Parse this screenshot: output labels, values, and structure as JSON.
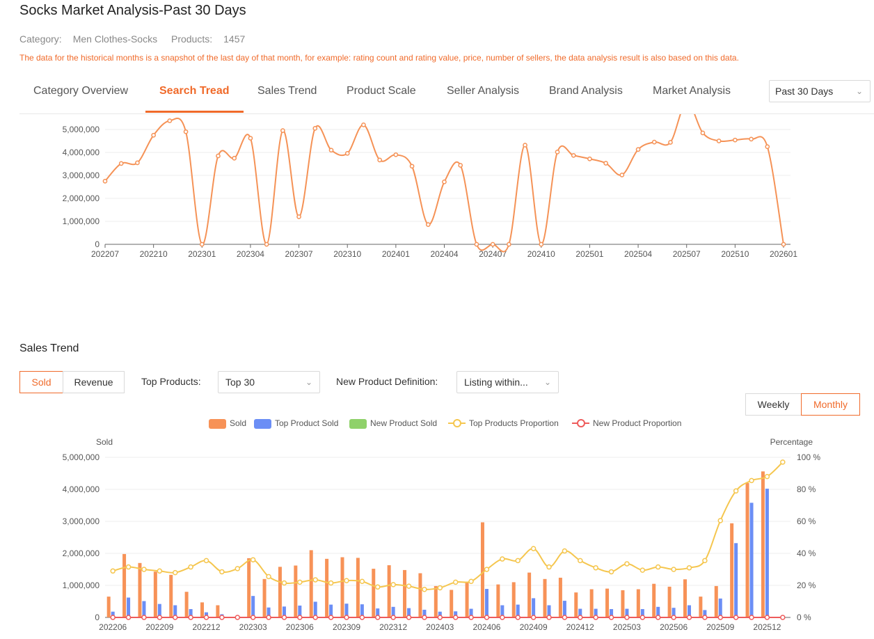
{
  "page": {
    "title": "Socks Market Analysis-Past 30 Days",
    "category_label": "Category:",
    "category_value": "Men Clothes-Socks",
    "products_label": "Products:",
    "products_value": "1457",
    "notice": "The data for the historical months is a snapshot of the last day of that month, for example: rating count and rating value, price, number of sellers, the data analysis result is also based on this data."
  },
  "tabs": [
    {
      "label": "Category Overview",
      "active": false
    },
    {
      "label": "Search Tread",
      "active": true
    },
    {
      "label": "Sales Trend",
      "active": false
    },
    {
      "label": "Product Scale",
      "active": false
    },
    {
      "label": "Seller Analysis",
      "active": false
    },
    {
      "label": "Brand Analysis",
      "active": false
    },
    {
      "label": "Market Analysis",
      "active": false
    }
  ],
  "period_select": {
    "value": "Past 30 Days"
  },
  "sales_section": {
    "title": "Sales Trend",
    "metric_toggle": [
      {
        "label": "Sold",
        "active": true
      },
      {
        "label": "Revenue",
        "active": false
      }
    ],
    "top_products_label": "Top Products:",
    "top_products_value": "Top 30",
    "new_def_label": "New Product Definition:",
    "new_def_value": "Listing within...",
    "granularity_toggle": [
      {
        "label": "Weekly",
        "active": false
      },
      {
        "label": "Monthly",
        "active": true
      }
    ]
  },
  "colors": {
    "accent": "#f06a2a",
    "search_line": "#f59256",
    "sold": "#f79257",
    "top_sold": "#6b8ef5",
    "new_sold": "#8fd16a",
    "top_prop": "#f5c64e",
    "new_prop": "#ee5b5b"
  },
  "chart_data": [
    {
      "type": "line",
      "title": "",
      "x": [
        "202207",
        "202208",
        "202209",
        "202210",
        "202211",
        "202212",
        "202301",
        "202302",
        "202303",
        "202304",
        "202305",
        "202306",
        "202307",
        "202308",
        "202309",
        "202310",
        "202311",
        "202312",
        "202401",
        "202402",
        "202403",
        "202404",
        "202405",
        "202406",
        "202407",
        "202408",
        "202409",
        "202410",
        "202411",
        "202412",
        "202501",
        "202502",
        "202503",
        "202504",
        "202505",
        "202506",
        "202507",
        "202508",
        "202509",
        "202510",
        "202511",
        "202512",
        "202601"
      ],
      "x_ticks": [
        "202207",
        "202210",
        "202301",
        "202304",
        "202307",
        "202310",
        "202401",
        "202404",
        "202407",
        "202410",
        "202501",
        "202504",
        "202507",
        "202510",
        "202601"
      ],
      "y_ticks": [
        0,
        1000000,
        2000000,
        3000000,
        4000000,
        5000000
      ],
      "y_tick_labels": [
        "0",
        "1,000,000",
        "2,000,000",
        "3,000,000",
        "4,000,000",
        "5,000,000"
      ],
      "ylim": [
        0,
        5000000
      ],
      "series": [
        {
          "values": [
            2750000,
            3520000,
            3550000,
            4750000,
            5380000,
            4900000,
            0,
            3850000,
            3750000,
            4620000,
            0,
            4950000,
            1200000,
            5050000,
            4100000,
            3960000,
            5200000,
            3670000,
            3900000,
            3400000,
            860000,
            2720000,
            3440000,
            0,
            0,
            0,
            4320000,
            0,
            4020000,
            3870000,
            3720000,
            3530000,
            3020000,
            4130000,
            4450000,
            4440000,
            6200000,
            4850000,
            4500000,
            4540000,
            4580000,
            4250000,
            0
          ]
        }
      ]
    },
    {
      "type": "bar",
      "title": "",
      "ylabel_left": "Sold",
      "ylabel_right": "Percentage",
      "x": [
        "202206",
        "202207",
        "202208",
        "202209",
        "202210",
        "202211",
        "202212",
        "202301",
        "202302",
        "202303",
        "202304",
        "202305",
        "202306",
        "202307",
        "202308",
        "202309",
        "202310",
        "202311",
        "202312",
        "202401",
        "202402",
        "202403",
        "202404",
        "202405",
        "202406",
        "202407",
        "202408",
        "202409",
        "202410",
        "202411",
        "202412",
        "202501",
        "202502",
        "202503",
        "202504",
        "202505",
        "202506",
        "202507",
        "202508",
        "202509",
        "202510",
        "202511",
        "202512",
        "202601"
      ],
      "x_ticks": [
        "202206",
        "202209",
        "202212",
        "202303",
        "202306",
        "202309",
        "202312",
        "202403",
        "202406",
        "202409",
        "202412",
        "202503",
        "202506",
        "202509",
        "202512"
      ],
      "y_left_ticks": [
        "0",
        "1,000,000",
        "2,000,000",
        "3,000,000",
        "4,000,000",
        "5,000,000"
      ],
      "y_right_ticks": [
        "0 %",
        "20 %",
        "40 %",
        "60 %",
        "80 %",
        "100 %"
      ],
      "ylim_left": [
        0,
        5000000
      ],
      "ylim_right": [
        0,
        100
      ],
      "legend_position": "top-center",
      "series": [
        {
          "name": "Sold",
          "kind": "bar",
          "values": [
            650000,
            1980000,
            1700000,
            1430000,
            1330000,
            800000,
            470000,
            380000,
            0,
            1850000,
            1200000,
            1580000,
            1620000,
            2100000,
            1830000,
            1880000,
            1860000,
            1520000,
            1630000,
            1480000,
            1380000,
            980000,
            860000,
            1100000,
            2970000,
            1030000,
            1100000,
            1400000,
            1200000,
            1240000,
            780000,
            880000,
            900000,
            850000,
            880000,
            1050000,
            960000,
            1190000,
            650000,
            980000,
            2940000,
            4200000,
            4560000,
            0
          ]
        },
        {
          "name": "Top Product Sold",
          "kind": "bar",
          "values": [
            180000,
            620000,
            510000,
            420000,
            380000,
            260000,
            160000,
            100000,
            0,
            670000,
            310000,
            340000,
            370000,
            490000,
            400000,
            430000,
            410000,
            280000,
            330000,
            290000,
            240000,
            180000,
            190000,
            270000,
            890000,
            380000,
            400000,
            600000,
            380000,
            520000,
            270000,
            270000,
            260000,
            270000,
            260000,
            330000,
            300000,
            380000,
            230000,
            590000,
            2320000,
            3580000,
            4020000,
            0
          ]
        },
        {
          "name": "New Product Sold",
          "kind": "bar",
          "values": [
            0,
            0,
            0,
            0,
            0,
            0,
            0,
            0,
            0,
            0,
            0,
            0,
            0,
            0,
            0,
            0,
            0,
            0,
            0,
            0,
            0,
            0,
            0,
            0,
            0,
            0,
            0,
            0,
            0,
            0,
            0,
            0,
            0,
            0,
            0,
            0,
            0,
            0,
            0,
            0,
            0,
            0,
            0,
            0
          ]
        },
        {
          "name": "Top Products Proportion",
          "kind": "line",
          "values": [
            29,
            31.5,
            30,
            29,
            28,
            31.5,
            35.5,
            28.5,
            30.5,
            36,
            25.5,
            21.5,
            22,
            23.5,
            21.5,
            23,
            22.5,
            19,
            20.5,
            19.5,
            17.5,
            18.5,
            22,
            22.5,
            30,
            36.5,
            35.5,
            43,
            31.5,
            41.5,
            35.5,
            31,
            28.5,
            33.5,
            29.5,
            31.5,
            30,
            31,
            35.5,
            60.5,
            79,
            85.5,
            88,
            97
          ]
        },
        {
          "name": "New Product Proportion",
          "kind": "line",
          "values": [
            0,
            0,
            0,
            0,
            0,
            0,
            0,
            0,
            0,
            0,
            0,
            0,
            0,
            0,
            0,
            0,
            0,
            0,
            0,
            0,
            0,
            0,
            0,
            0,
            0,
            0,
            0,
            0,
            0,
            0,
            0,
            0,
            0,
            0,
            0,
            0,
            0,
            0,
            0,
            0,
            0,
            0,
            0,
            0
          ]
        }
      ]
    }
  ]
}
